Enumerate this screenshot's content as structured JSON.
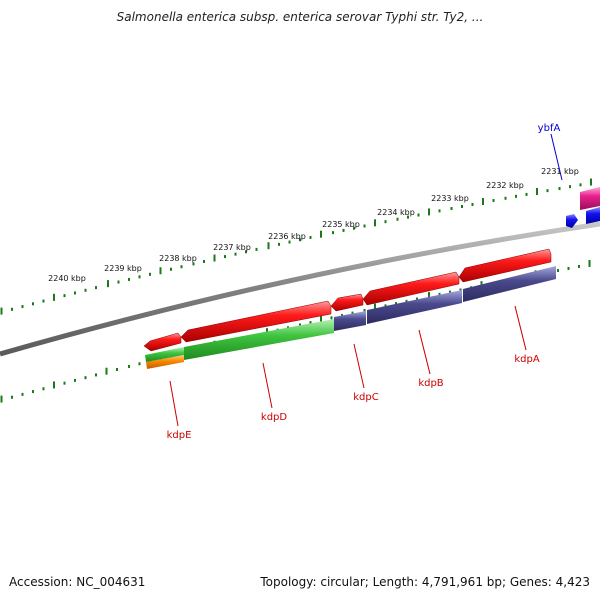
{
  "title": "Salmonella enterica subsp. enterica serovar Typhi str. Ty2, ...",
  "footer": {
    "accession": "Accession: NC_004631",
    "summary": "Topology: circular; Length: 4,791,961 bp; Genes: 4,423"
  },
  "ticks": [
    "2231 kbp",
    "2232 kbp",
    "2233 kbp",
    "2234 kbp",
    "2235 kbp",
    "2236 kbp",
    "2237 kbp",
    "2238 kbp",
    "2239 kbp",
    "2240 kbp"
  ],
  "genes": [
    {
      "name": "ybfA",
      "color": "#0000cc"
    },
    {
      "name": "kdpA",
      "color": "#cc0000"
    },
    {
      "name": "kdpB",
      "color": "#cc0000"
    },
    {
      "name": "kdpC",
      "color": "#cc0000"
    },
    {
      "name": "kdpD",
      "color": "#cc0000"
    },
    {
      "name": "kdpE",
      "color": "#cc0000"
    }
  ],
  "colors": {
    "backbone": "#808080",
    "tick": "#1a7a1a",
    "forward_gene": "#ee1111",
    "cds_blue": "#4b4a8e",
    "cds_green": "#33bb33",
    "cds_orange": "#ff8c00",
    "pink": "#e8208c",
    "blue": "#1111ee"
  }
}
